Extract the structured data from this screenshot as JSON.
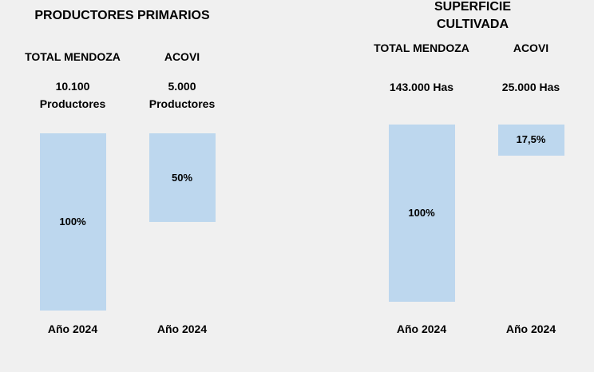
{
  "chart_data": [
    {
      "type": "bar",
      "title": "PRODUCTORES PRIMARIOS",
      "categories": [
        "TOTAL MENDOZA",
        "ACOVI"
      ],
      "totals": [
        "10.100\nProductores",
        "5.000\nProductores"
      ],
      "values": [
        100,
        50
      ],
      "value_labels": [
        "100%",
        "50%"
      ],
      "periods": [
        "Año 2024",
        "Año 2024"
      ],
      "color": "#bdd7ee"
    },
    {
      "type": "bar",
      "title": "SUPERFICIE CULTIVADA",
      "categories": [
        "TOTAL MENDOZA",
        "ACOVI"
      ],
      "totals": [
        "143.000 Has",
        "25.000 Has"
      ],
      "values": [
        100,
        17.5
      ],
      "value_labels": [
        "100%",
        "17,5%"
      ],
      "periods": [
        "Año 2024",
        "Año 2024"
      ],
      "color": "#bdd7ee"
    }
  ]
}
